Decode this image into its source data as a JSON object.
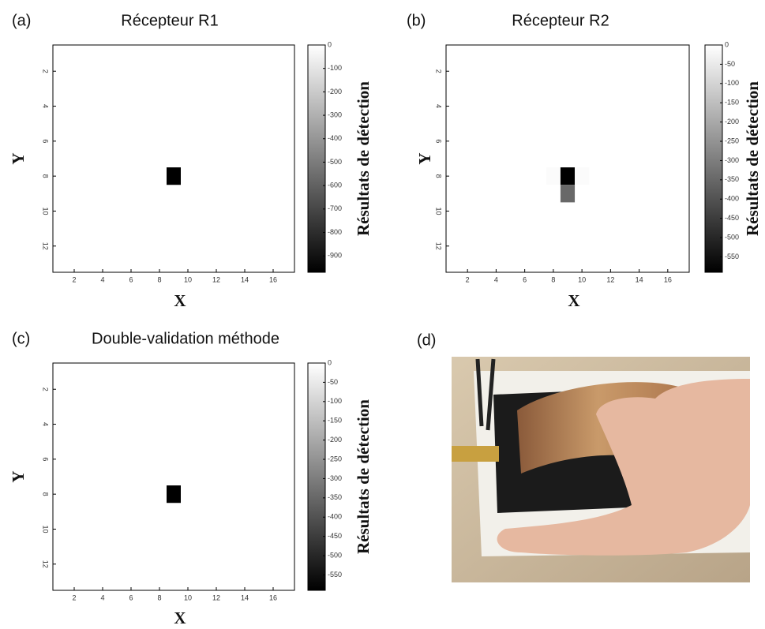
{
  "chart_data": [
    {
      "type": "heatmap",
      "panel_label": "(a)",
      "title": "Récepteur R1",
      "xlabel": "X",
      "ylabel": "Y",
      "colorbar_label": "Résultats de détection",
      "colormap": "gray",
      "xlim": [
        0.5,
        17.5
      ],
      "ylim": [
        13.5,
        0.5
      ],
      "xticks": [
        2,
        4,
        6,
        8,
        10,
        12,
        14,
        16
      ],
      "yticks": [
        2,
        4,
        6,
        8,
        10,
        12
      ],
      "clim": [
        -970,
        0
      ],
      "cticks": [
        0,
        -100,
        -200,
        -300,
        -400,
        -500,
        -600,
        -700,
        -800,
        -900
      ],
      "x": [
        9
      ],
      "y": [
        8
      ],
      "values": [
        -970
      ]
    },
    {
      "type": "heatmap",
      "panel_label": "(b)",
      "title": "Récepteur R2",
      "xlabel": "X",
      "ylabel": "Y",
      "colorbar_label": "Résultats de détection",
      "colormap": "gray",
      "xlim": [
        0.5,
        17.5
      ],
      "ylim": [
        13.5,
        0.5
      ],
      "xticks": [
        2,
        4,
        6,
        8,
        10,
        12,
        14,
        16
      ],
      "yticks": [
        2,
        4,
        6,
        8,
        10,
        12
      ],
      "clim": [
        -590,
        0
      ],
      "cticks": [
        0,
        -50,
        -100,
        -150,
        -200,
        -250,
        -300,
        -350,
        -400,
        -450,
        -500,
        -550
      ],
      "x": [
        8,
        9,
        10,
        9
      ],
      "y": [
        8,
        8,
        8,
        9
      ],
      "values": [
        -10,
        -590,
        -10,
        -350
      ]
    },
    {
      "type": "heatmap",
      "panel_label": "(c)",
      "title": "Double-validation méthode",
      "xlabel": "X",
      "ylabel": "Y",
      "colorbar_label": "Résultats de détection",
      "colormap": "gray",
      "xlim": [
        0.5,
        17.5
      ],
      "ylim": [
        13.5,
        0.5
      ],
      "xticks": [
        2,
        4,
        6,
        8,
        10,
        12,
        14,
        16
      ],
      "yticks": [
        2,
        4,
        6,
        8,
        10,
        12
      ],
      "clim": [
        -590,
        0
      ],
      "cticks": [
        0,
        -50,
        -100,
        -150,
        -200,
        -250,
        -300,
        -350,
        -400,
        -450,
        -500,
        -550
      ],
      "x": [
        9
      ],
      "y": [
        8
      ],
      "values": [
        -590
      ]
    }
  ],
  "photo": {
    "panel_label": "(d)"
  }
}
